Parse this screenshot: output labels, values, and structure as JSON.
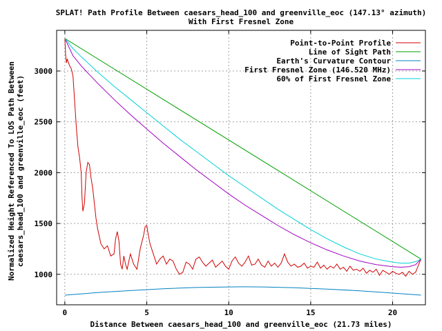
{
  "chart_data": {
    "type": "line",
    "title_line1": "SPLAT! Path Profile Between caesars_head_100 and greenville_eoc (147.13° azimuth)",
    "title_line2": "With First Fresnel Zone",
    "xlabel": "Distance Between caesars_head_100 and greenville_eoc (21.73 miles)",
    "ylabel_line1": "Normalized Height Referenced To LOS Path Between",
    "ylabel_line2": "caesars_head_100 and greenville_eoc (feet)",
    "xlim": [
      -0.5,
      22
    ],
    "ylim": [
      700,
      3400
    ],
    "x_ticks": [
      {
        "value": 0,
        "label": "0"
      },
      {
        "value": 5,
        "label": "5"
      },
      {
        "value": 10,
        "label": "10"
      },
      {
        "value": 15,
        "label": "15"
      },
      {
        "value": 20,
        "label": "20"
      }
    ],
    "y_ticks": [
      {
        "value": 1000,
        "label": "1000"
      },
      {
        "value": 1500,
        "label": "1500"
      },
      {
        "value": 2000,
        "label": "2000"
      },
      {
        "value": 2500,
        "label": "2500"
      },
      {
        "value": 3000,
        "label": "3000"
      }
    ],
    "grid": true,
    "legend_position": "top-right",
    "series": [
      {
        "name": "Point-to-Point Profile",
        "color": "#d00000",
        "x": [
          0,
          0.05,
          0.1,
          0.15,
          0.2,
          0.3,
          0.4,
          0.5,
          0.6,
          0.7,
          0.8,
          0.9,
          1.0,
          1.05,
          1.1,
          1.2,
          1.3,
          1.4,
          1.5,
          1.6,
          1.7,
          1.8,
          1.9,
          2.0,
          2.2,
          2.4,
          2.6,
          2.8,
          3.0,
          3.1,
          3.2,
          3.3,
          3.4,
          3.5,
          3.6,
          3.7,
          3.8,
          4.0,
          4.2,
          4.4,
          4.6,
          4.8,
          4.9,
          5.0,
          5.1,
          5.2,
          5.4,
          5.6,
          5.8,
          6.0,
          6.2,
          6.4,
          6.6,
          6.8,
          7.0,
          7.2,
          7.4,
          7.6,
          7.8,
          8.0,
          8.2,
          8.4,
          8.6,
          8.8,
          9.0,
          9.2,
          9.4,
          9.6,
          9.8,
          10.0,
          10.2,
          10.4,
          10.6,
          10.8,
          11.0,
          11.2,
          11.4,
          11.6,
          11.8,
          12.0,
          12.2,
          12.4,
          12.6,
          12.8,
          13.0,
          13.2,
          13.4,
          13.6,
          13.8,
          14.0,
          14.2,
          14.4,
          14.6,
          14.8,
          15.0,
          15.2,
          15.4,
          15.6,
          15.8,
          16.0,
          16.2,
          16.4,
          16.6,
          16.8,
          17.0,
          17.2,
          17.4,
          17.6,
          17.8,
          18.0,
          18.2,
          18.4,
          18.6,
          18.8,
          19.0,
          19.2,
          19.4,
          19.6,
          19.8,
          20.0,
          20.2,
          20.4,
          20.6,
          20.8,
          21.0,
          21.2,
          21.4,
          21.55,
          21.65,
          21.73
        ],
        "values": [
          3320,
          3150,
          3080,
          3120,
          3090,
          3050,
          3020,
          2950,
          2700,
          2450,
          2250,
          2150,
          2000,
          1750,
          1620,
          1700,
          2000,
          2100,
          2080,
          1950,
          1850,
          1700,
          1550,
          1450,
          1300,
          1250,
          1280,
          1180,
          1200,
          1350,
          1420,
          1330,
          1100,
          1050,
          1180,
          1100,
          1050,
          1200,
          1100,
          1050,
          1250,
          1380,
          1470,
          1480,
          1380,
          1300,
          1200,
          1100,
          1150,
          1180,
          1100,
          1150,
          1130,
          1050,
          1000,
          1020,
          1120,
          1100,
          1050,
          1150,
          1170,
          1120,
          1080,
          1110,
          1140,
          1070,
          1100,
          1130,
          1080,
          1050,
          1130,
          1170,
          1110,
          1080,
          1120,
          1180,
          1090,
          1100,
          1150,
          1090,
          1070,
          1130,
          1080,
          1110,
          1070,
          1110,
          1200,
          1120,
          1080,
          1100,
          1070,
          1080,
          1110,
          1060,
          1080,
          1070,
          1120,
          1060,
          1090,
          1050,
          1080,
          1060,
          1100,
          1050,
          1070,
          1030,
          1080,
          1040,
          1050,
          1030,
          1060,
          1010,
          1040,
          1020,
          1050,
          990,
          1040,
          1020,
          1000,
          1030,
          1010,
          1000,
          1020,
          980,
          1030,
          1000,
          1020,
          1080,
          1120,
          1150
        ]
      },
      {
        "name": "Line of Sight Path",
        "color": "#00a000",
        "x": [
          0,
          21.73
        ],
        "values": [
          3320,
          1150
        ]
      },
      {
        "name": "Earth's Curvature Contour",
        "color": "#0080c0",
        "x": [
          0,
          2,
          4,
          6,
          8,
          10,
          10.865,
          12,
          14,
          16,
          18,
          20,
          21.73
        ],
        "values": [
          795,
          820,
          840,
          858,
          870,
          876,
          877,
          876,
          868,
          855,
          838,
          815,
          795
        ]
      },
      {
        "name": "First Fresnel Zone (146.520 MHz)",
        "color": "#a000c0",
        "x": [
          0,
          0.5,
          1,
          2,
          3,
          4,
          5,
          6,
          7,
          8,
          9,
          10,
          11,
          12,
          13,
          14,
          15,
          16,
          17,
          18,
          19,
          20,
          20.5,
          21,
          21.4,
          21.73
        ],
        "values": [
          3320,
          3150,
          3050,
          2880,
          2720,
          2570,
          2430,
          2290,
          2160,
          2030,
          1910,
          1790,
          1680,
          1580,
          1480,
          1390,
          1310,
          1240,
          1180,
          1130,
          1095,
          1075,
          1070,
          1075,
          1095,
          1150
        ]
      },
      {
        "name": "60% of First Fresnel Zone",
        "color": "#00d0d8",
        "x": [
          0,
          0.5,
          1,
          2,
          3,
          4,
          5,
          6,
          7,
          8,
          9,
          10,
          11,
          12,
          13,
          14,
          15,
          16,
          17,
          18,
          19,
          20,
          20.5,
          21,
          21.4,
          21.73
        ],
        "values": [
          3320,
          3220,
          3140,
          2990,
          2850,
          2720,
          2590,
          2460,
          2330,
          2210,
          2090,
          1970,
          1860,
          1750,
          1640,
          1540,
          1440,
          1350,
          1270,
          1200,
          1150,
          1120,
          1110,
          1110,
          1125,
          1150
        ]
      }
    ]
  }
}
